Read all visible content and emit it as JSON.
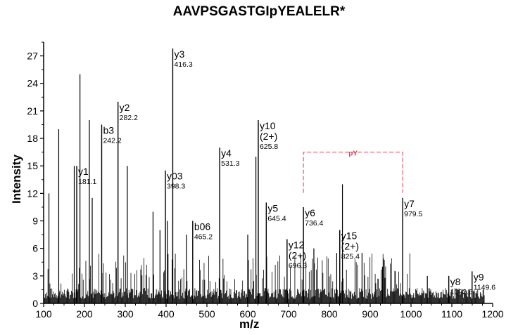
{
  "chart_data": {
    "type": "bar",
    "title": "AAVPSGASTGIpYEALELR*",
    "xlabel": "m/z",
    "ylabel": "Intensity",
    "xlim": [
      100,
      1200
    ],
    "ylim": [
      0,
      28.5
    ],
    "xticks": [
      100,
      200,
      300,
      400,
      500,
      600,
      700,
      800,
      900,
      1000,
      1100,
      1200
    ],
    "yticks": [
      0,
      3,
      6,
      9,
      12,
      15,
      18,
      21,
      24,
      27
    ],
    "labeled_peaks": [
      {
        "x": 181.1,
        "y": 15.0,
        "ion": "y1",
        "mz": "181.1"
      },
      {
        "x": 242.2,
        "y": 19.5,
        "ion": "b3",
        "mz": "242.2"
      },
      {
        "x": 282.2,
        "y": 22.0,
        "ion": "y2",
        "mz": "282.2"
      },
      {
        "x": 398.3,
        "y": 14.5,
        "ion": "y03",
        "mz": "398.3"
      },
      {
        "x": 416.3,
        "y": 27.8,
        "ion": "y3",
        "mz": "416.3"
      },
      {
        "x": 465.2,
        "y": 9.0,
        "ion": "b06",
        "mz": "465.2"
      },
      {
        "x": 531.3,
        "y": 17.0,
        "ion": "y4",
        "mz": "531.3"
      },
      {
        "x": 645.4,
        "y": 11.0,
        "ion": "y5",
        "mz": "645.4"
      },
      {
        "x": 625.8,
        "y": 20.0,
        "ion": "y10",
        "charge": "(2+)",
        "mz": "625.8"
      },
      {
        "x": 696.3,
        "y": 7.0,
        "ion": "y12",
        "charge": "(2+)",
        "mz": "696.3"
      },
      {
        "x": 736.4,
        "y": 10.5,
        "ion": "y6",
        "mz": "736.4"
      },
      {
        "x": 825.4,
        "y": 8.0,
        "ion": "y15",
        "charge": "(2+)",
        "mz": "825.4"
      },
      {
        "x": 979.5,
        "y": 11.5,
        "ion": "y7",
        "mz": "979.5"
      },
      {
        "x": 1092.5,
        "y": 3.0,
        "ion": "y8",
        "mz": "1092.5"
      },
      {
        "x": 1149.6,
        "y": 3.5,
        "ion": "y9",
        "mz": "1149.6"
      }
    ],
    "unlabeled_peaks": [
      {
        "x": 113,
        "y": 12.0
      },
      {
        "x": 137,
        "y": 19.0
      },
      {
        "x": 175,
        "y": 15.0
      },
      {
        "x": 189,
        "y": 25.0
      },
      {
        "x": 212,
        "y": 20.0
      },
      {
        "x": 219,
        "y": 11.5
      },
      {
        "x": 305,
        "y": 15.0
      },
      {
        "x": 368,
        "y": 10.0
      },
      {
        "x": 385,
        "y": 8.0
      },
      {
        "x": 403,
        "y": 9.0
      },
      {
        "x": 450,
        "y": 7.5
      },
      {
        "x": 600,
        "y": 7.5
      },
      {
        "x": 620,
        "y": 16.0
      },
      {
        "x": 762,
        "y": 6.0
      },
      {
        "x": 818,
        "y": 5.5
      },
      {
        "x": 832,
        "y": 13.0
      },
      {
        "x": 880,
        "y": 5.5
      },
      {
        "x": 930,
        "y": 4.0
      },
      {
        "x": 1040,
        "y": 3.0
      }
    ],
    "annotation": {
      "text": "pY",
      "from": 736.4,
      "to": 979.5,
      "y": 16.5,
      "color": "#e0405a"
    },
    "noise_floor": 1.2,
    "grid": false
  }
}
